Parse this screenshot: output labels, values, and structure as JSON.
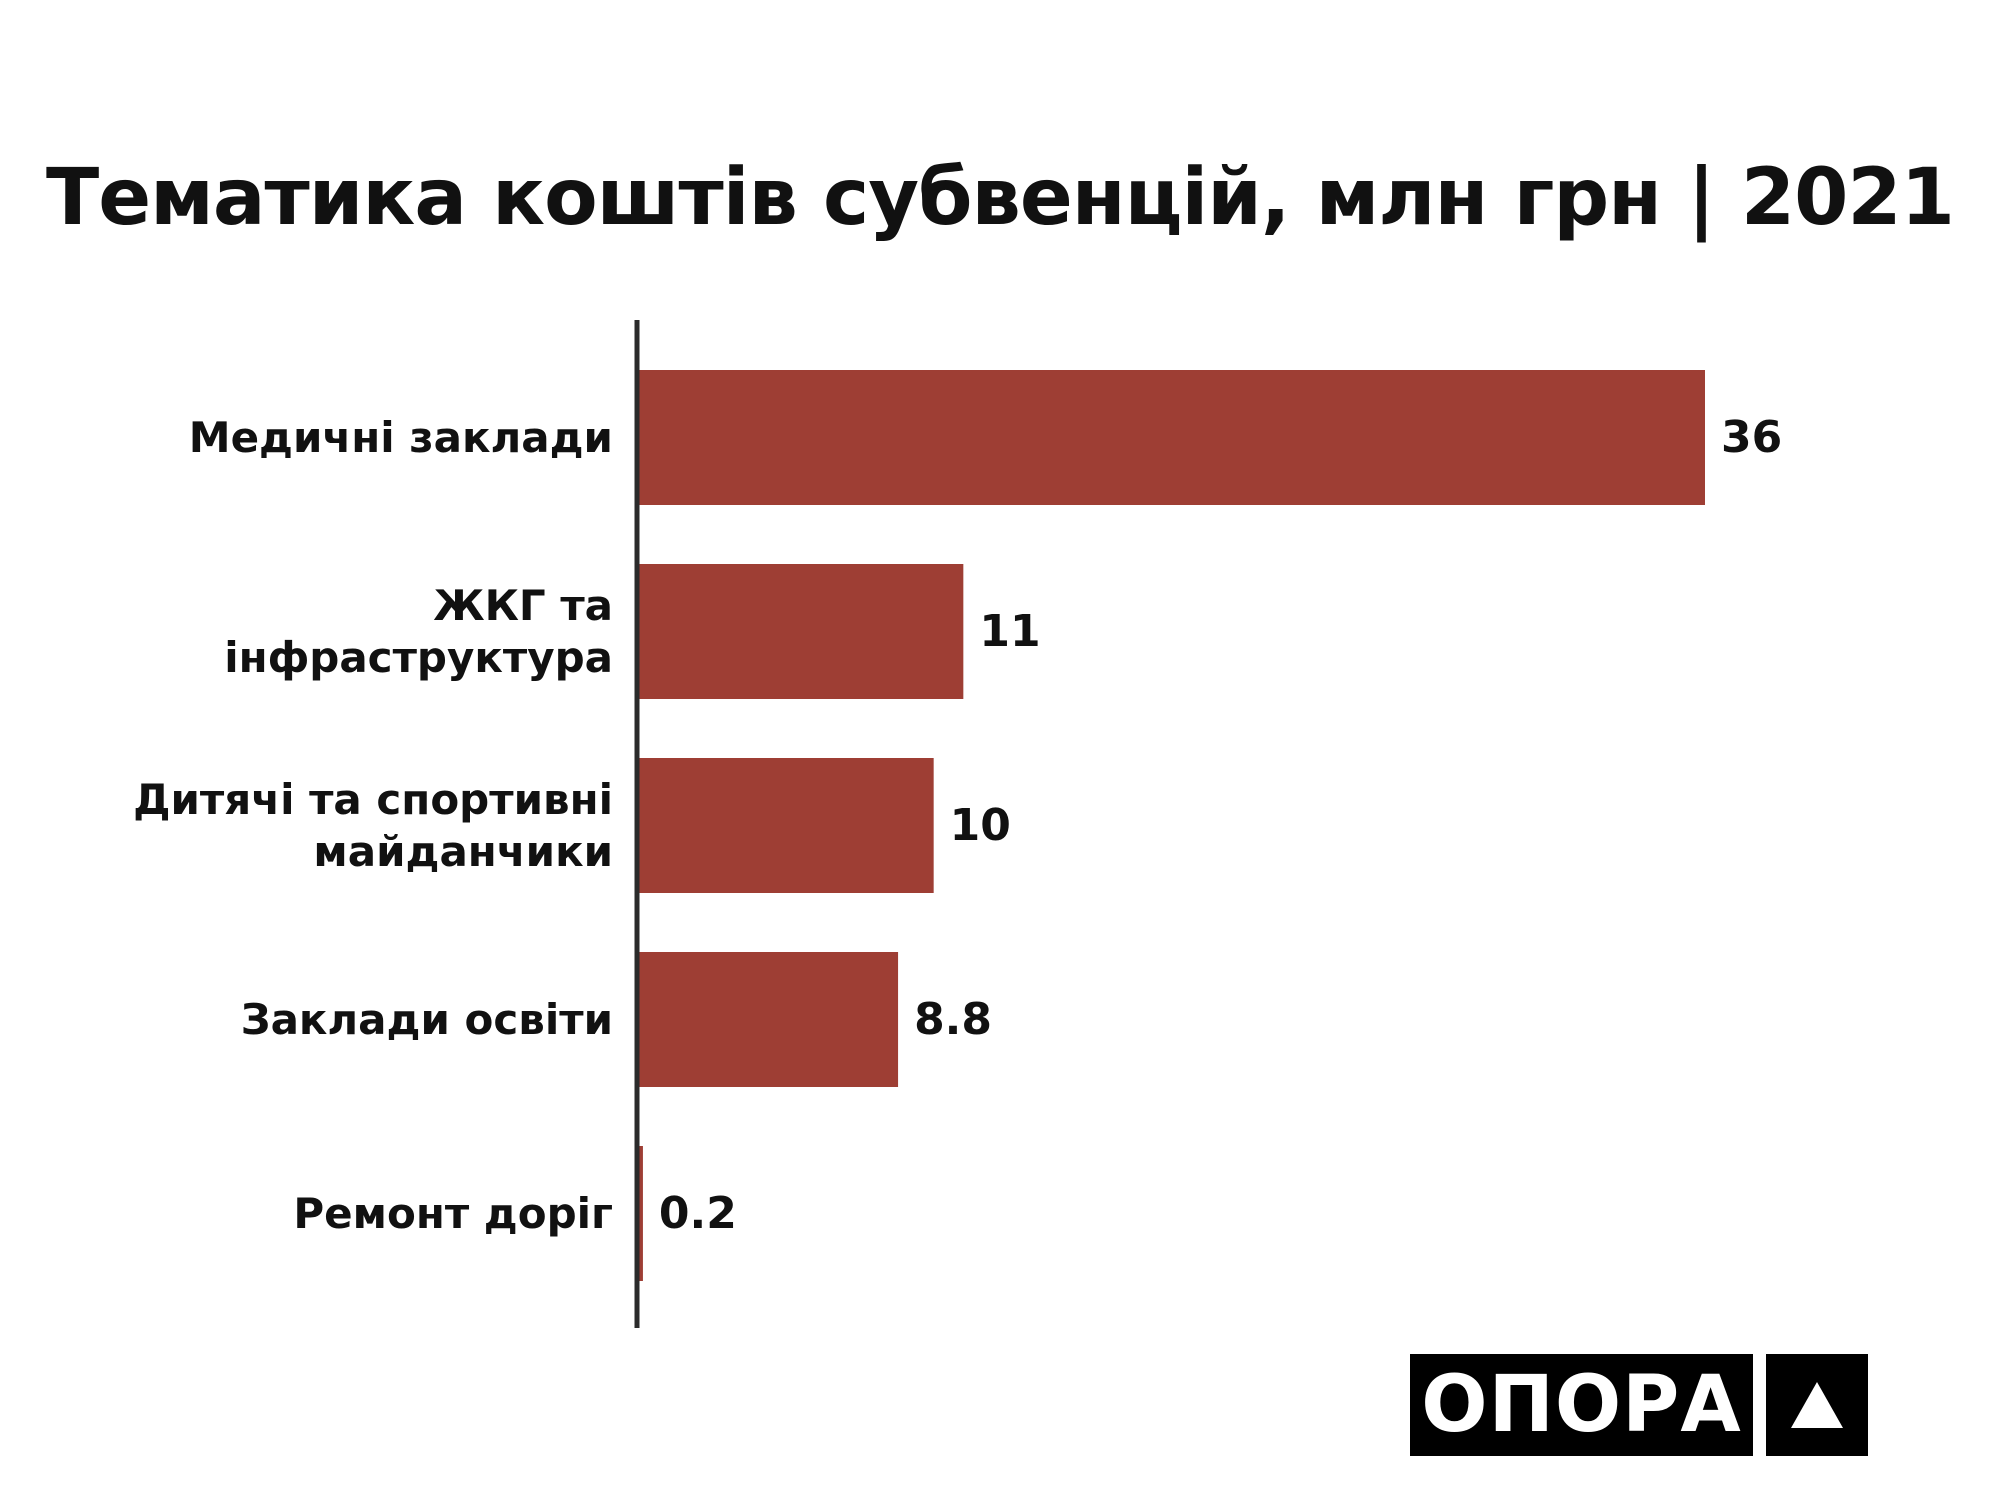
{
  "chart_data": {
    "type": "bar",
    "orientation": "horizontal",
    "title": "Тематика коштів субвенцій, млн грн | 2021",
    "categories": [
      [
        "Медичні заклади"
      ],
      [
        "ЖКГ та",
        "інфраструктура"
      ],
      [
        "Дитячі та спортивні",
        "майданчики"
      ],
      [
        "Заклади освіти"
      ],
      [
        "Ремонт доріг"
      ]
    ],
    "values": [
      36,
      11,
      10,
      8.8,
      0.2
    ],
    "value_labels": [
      "36",
      "11",
      "10",
      "8.8",
      "0.2"
    ],
    "xlim": [
      0,
      36
    ],
    "grid": false,
    "legend": "none",
    "bar_color": "#9e3e34",
    "axis_color": "#2b2b2b"
  },
  "logo": {
    "text": "ОПОРА",
    "mark": "triangle-icon"
  }
}
